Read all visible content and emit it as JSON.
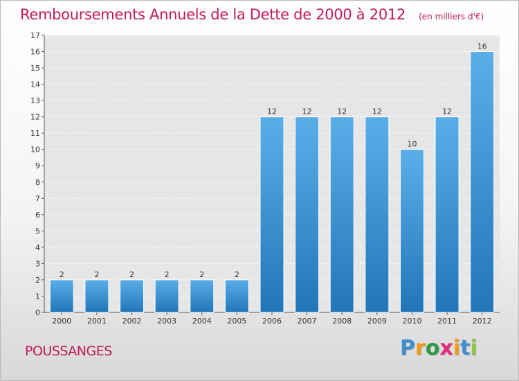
{
  "title": "Remboursements Annuels de la Dette de 2000 à 2012",
  "subtitle": "(en milliers d'€)",
  "place": "POUSSANGES",
  "brand": {
    "letters": [
      "P",
      "r",
      "o",
      "x",
      "i",
      "t",
      "i"
    ],
    "colors": [
      "#3f8fd0",
      "#f29b1b",
      "#2e9a44",
      "#e62a7a",
      "#f29b1b",
      "#3f8fd0",
      "#8cc63f"
    ]
  },
  "colors": {
    "bar": "#3a93d8",
    "bar_light": "#5aaee8",
    "bar_dark": "#2176b8",
    "text": "#c2185b"
  },
  "chart_data": {
    "type": "bar",
    "categories": [
      "2000",
      "2001",
      "2002",
      "2003",
      "2004",
      "2005",
      "2006",
      "2007",
      "2008",
      "2009",
      "2010",
      "2011",
      "2012"
    ],
    "values": [
      2,
      2,
      2,
      2,
      2,
      2,
      12,
      12,
      12,
      12,
      10,
      12,
      16
    ],
    "title": "Remboursements Annuels de la Dette de 2000 à 2012",
    "ylim": [
      0,
      17
    ],
    "yticks": [
      0,
      1,
      2,
      3,
      4,
      5,
      6,
      7,
      8,
      9,
      10,
      11,
      12,
      13,
      14,
      15,
      16,
      17
    ],
    "grid": true
  }
}
